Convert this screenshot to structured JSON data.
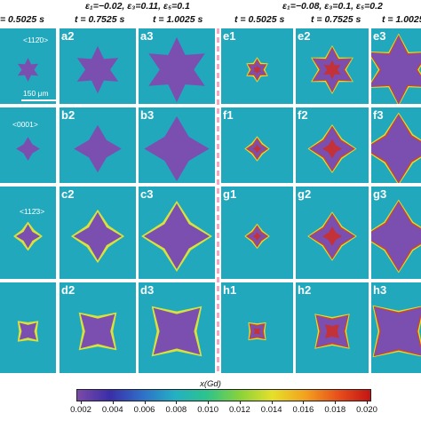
{
  "header": {
    "group_left_params": "ε₁=−0.02, ε₃=0.11, ε₅=0.1",
    "group_right_params": "ε₁=−0.08, ε₃=0.1, ε₅=0.2",
    "times": [
      "= 0.5025 s",
      "t = 0.7525 s",
      "t = 1.0025 s",
      "t = 0.5025 s",
      "t = 0.7525 s",
      "t = 1.0025 s"
    ]
  },
  "panels": [
    [
      "",
      "a2",
      "a3",
      "e1",
      "e2",
      "e3"
    ],
    [
      "",
      "b2",
      "b3",
      "f1",
      "f2",
      "f3"
    ],
    [
      "",
      "c2",
      "c3",
      "g1",
      "g2",
      "g3"
    ],
    [
      "",
      "d2",
      "d3",
      "h1",
      "h2",
      "h3"
    ]
  ],
  "annotations": {
    "dir_a": "<112̄0>",
    "dir_b": "<0001>",
    "dir_c": "<112̄3>",
    "scale": "150 μm"
  },
  "colorbar": {
    "title": "x(Gd)",
    "ticks": [
      "0.002",
      "0.004",
      "0.006",
      "0.008",
      "0.010",
      "0.012",
      "0.014",
      "0.016",
      "0.018",
      "0.020"
    ],
    "colors": [
      "#7c4aa8",
      "#3a2ea8",
      "#2f6fc8",
      "#23b0c4",
      "#2ec48a",
      "#8ad23a",
      "#e6e02a",
      "#f2a21e",
      "#e8501c",
      "#c41414"
    ]
  },
  "colors": {
    "background": "#22a8bc",
    "crystal": "#7b4fb0",
    "rim_yellow": "#d8e23a",
    "rim_red": "#d42a1a",
    "divider": "#f4a6c0"
  }
}
